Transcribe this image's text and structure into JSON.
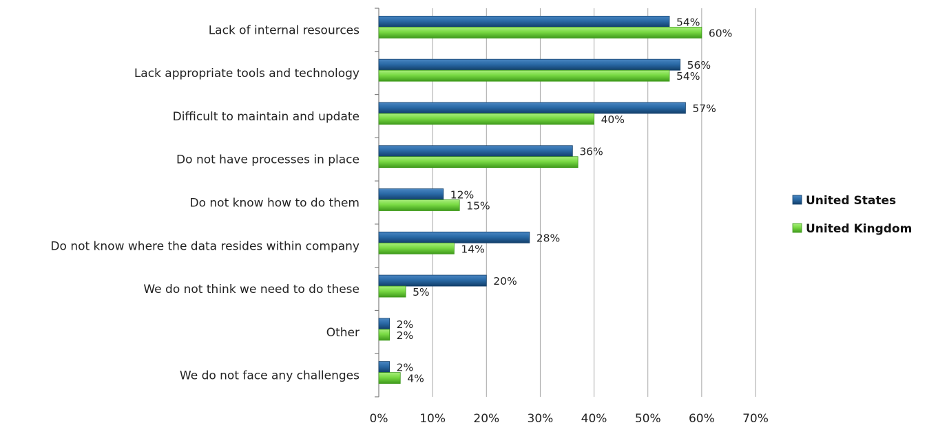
{
  "chart_data": {
    "type": "bar",
    "orientation": "horizontal",
    "categories": [
      "Lack of internal resources",
      "Lack appropriate tools and technology",
      "Difficult to maintain and update",
      "Do not have processes in place",
      "Do not know how to do them",
      "Do not know where the data resides within company",
      "We do not think we need to do these",
      "Other",
      "We do not face any challenges"
    ],
    "series": [
      {
        "name": "United States",
        "values": [
          54,
          56,
          57,
          36,
          12,
          28,
          20,
          2,
          2
        ],
        "labels": [
          "54%",
          "56%",
          "57%",
          "36%",
          "12%",
          "28%",
          "20%",
          "2%",
          "2%"
        ],
        "color": "#1f5b8e"
      },
      {
        "name": "United Kingdom",
        "values": [
          60,
          54,
          40,
          37,
          15,
          14,
          5,
          2,
          4
        ],
        "labels": [
          "60%",
          "54%",
          "40%",
          "",
          "15%",
          "14%",
          "5%",
          "2%",
          "4%"
        ],
        "color": "#6fd33a"
      }
    ],
    "xlim": [
      0,
      70
    ],
    "xticks": [
      "0%",
      "10%",
      "20%",
      "30%",
      "40%",
      "50%",
      "60%",
      "70%"
    ],
    "grid": true,
    "legend_position": "right"
  }
}
